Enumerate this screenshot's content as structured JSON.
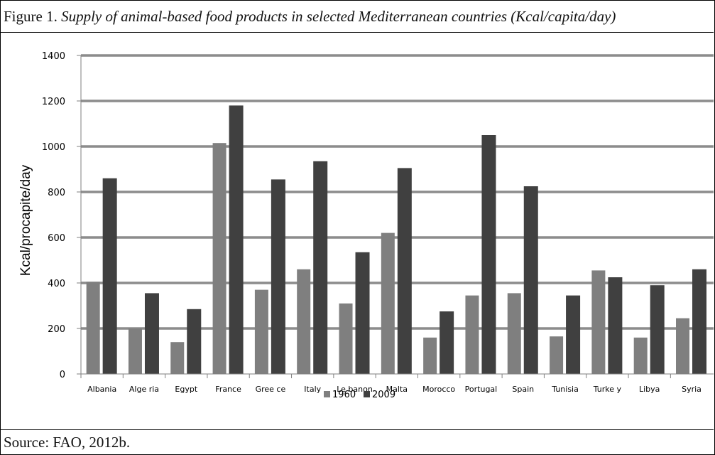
{
  "figure": {
    "label": "Figure 1.",
    "title": "Supply of animal-based food products in selected Mediterranean countries (Kcal/capita/day)",
    "source": "Source: FAO, 2012b."
  },
  "chart_data": {
    "type": "bar",
    "categories": [
      "Albania",
      "Algeria",
      "Egypt",
      "France",
      "Greece",
      "Italy",
      "Lebanon",
      "Malta",
      "Morocco",
      "Portugal",
      "Spain",
      "Tunisia",
      "Turkey",
      "Libya",
      "Syria"
    ],
    "category_labels": [
      "Albania",
      "Alge ria",
      "Egypt",
      "France",
      "Gree ce",
      "Italy",
      "Le banon",
      "Malta",
      "Morocco",
      "Portugal",
      "Spain",
      "Tunisia",
      "Turke y",
      "Libya",
      "Syria"
    ],
    "series": [
      {
        "name": "1960",
        "color": "#7f7f7f",
        "values": [
          405,
          200,
          140,
          1015,
          370,
          460,
          310,
          620,
          160,
          345,
          355,
          165,
          455,
          160,
          245
        ]
      },
      {
        "name": "2009",
        "color": "#404040",
        "values": [
          860,
          355,
          285,
          1180,
          855,
          935,
          535,
          905,
          275,
          1050,
          825,
          345,
          425,
          390,
          460
        ]
      }
    ],
    "title": "",
    "xlabel": "",
    "ylabel": "Kcal/procapite/day",
    "ylim": [
      0,
      1400
    ],
    "yticks": [
      0,
      200,
      400,
      600,
      800,
      1000,
      1200,
      1400
    ],
    "grid": true,
    "legend": "bottom"
  }
}
